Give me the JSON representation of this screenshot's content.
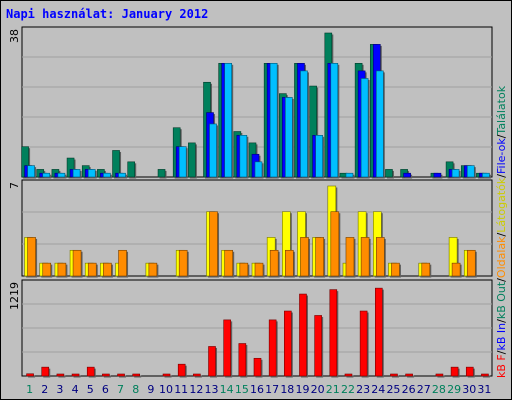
{
  "chart_data": {
    "type": "bar",
    "title": "Napi használat: January 2012",
    "categories": [
      "1",
      "2",
      "3",
      "4",
      "5",
      "6",
      "7",
      "8",
      "9",
      "10",
      "11",
      "12",
      "13",
      "14",
      "15",
      "16",
      "17",
      "18",
      "19",
      "20",
      "21",
      "22",
      "23",
      "24",
      "25",
      "26",
      "27",
      "28",
      "29",
      "30",
      "31"
    ],
    "weekend_days": [
      "1",
      "7",
      "8",
      "14",
      "15",
      "21",
      "22",
      "28",
      "29"
    ],
    "top_panel": {
      "ymax": 38,
      "ymax_label": "38",
      "series": [
        {
          "name": "Találatok",
          "color": "#00805c",
          "values": [
            8,
            2,
            2,
            5,
            3,
            2,
            7,
            4,
            0,
            2,
            13,
            9,
            25,
            30,
            12,
            9,
            30,
            22,
            30,
            24,
            38,
            1,
            30,
            35,
            2,
            2,
            0,
            1,
            4,
            3,
            1
          ]
        },
        {
          "name": "File-ok",
          "color": "#0000ff",
          "values": [
            3,
            1,
            1,
            2,
            2,
            1,
            1,
            0,
            0,
            0,
            8,
            0,
            17,
            30,
            11,
            6,
            30,
            21,
            30,
            11,
            30,
            0,
            28,
            35,
            0,
            1,
            0,
            1,
            2,
            3,
            1
          ]
        },
        {
          "name": "Látogatók",
          "color": "#00bfff",
          "values": [
            3,
            1,
            1,
            2,
            2,
            1,
            1,
            0,
            0,
            0,
            8,
            0,
            14,
            30,
            11,
            4,
            30,
            21,
            28,
            11,
            30,
            1,
            26,
            28,
            0,
            0,
            0,
            0,
            2,
            3,
            1
          ]
        }
      ]
    },
    "mid_panel": {
      "ymax": 7,
      "ymax_label": "7",
      "series": [
        {
          "name": "Látogatók",
          "color": "#ffff00",
          "values": [
            3,
            1,
            1,
            2,
            1,
            1,
            1,
            0,
            1,
            0,
            2,
            0,
            5,
            2,
            1,
            1,
            3,
            5,
            5,
            3,
            7,
            1,
            5,
            5,
            1,
            0,
            1,
            0,
            3,
            2,
            0
          ]
        },
        {
          "name": "Oldalak",
          "color": "#ff8c00",
          "values": [
            3,
            1,
            1,
            2,
            1,
            1,
            2,
            0,
            1,
            0,
            2,
            0,
            5,
            2,
            1,
            1,
            2,
            2,
            3,
            3,
            5,
            3,
            3,
            3,
            1,
            0,
            1,
            0,
            1,
            2,
            0
          ]
        }
      ]
    },
    "bottom_panel": {
      "ymax": 1219,
      "ymax_label": "1219",
      "series": [
        {
          "name": "kB F",
          "color": "#ff0000",
          "values": [
            30,
            120,
            20,
            20,
            120,
            20,
            20,
            20,
            0,
            20,
            160,
            20,
            400,
            760,
            440,
            240,
            760,
            880,
            1110,
            820,
            1170,
            20,
            880,
            1190,
            20,
            20,
            0,
            20,
            120,
            120,
            20
          ]
        }
      ]
    },
    "right_legend": {
      "segments": [
        {
          "text": "kB F",
          "color": "#ff0000"
        },
        {
          "text": "/",
          "color": "#000000"
        },
        {
          "text": "kB In",
          "color": "#0000ff"
        },
        {
          "text": "/",
          "color": "#000000"
        },
        {
          "text": "kB Out",
          "color": "#00805c"
        },
        {
          "text": "/",
          "color": "#000000"
        },
        {
          "text": "Oldalak",
          "color": "#ff8c00"
        },
        {
          "text": "/",
          "color": "#000000"
        },
        {
          "text": "Látogatók",
          "color": "#cccc00"
        },
        {
          "text": "/",
          "color": "#000000"
        },
        {
          "text": "File-ok",
          "color": "#0000ff"
        },
        {
          "text": "/",
          "color": "#000000"
        },
        {
          "text": "Találatok",
          "color": "#00805c"
        }
      ]
    }
  }
}
